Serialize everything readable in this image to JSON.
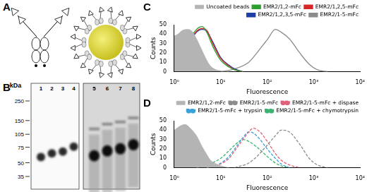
{
  "panels": {
    "labels": [
      "A",
      "B",
      "C",
      "D"
    ]
  },
  "blot": {
    "unit_label": "kDa",
    "markers": [
      250,
      150,
      105,
      75,
      50,
      35
    ],
    "lanes": [
      {
        "label": "1",
        "band_kda": 58
      },
      {
        "label": "2",
        "band_kda": 64
      },
      {
        "label": "3",
        "band_kda": 67
      },
      {
        "label": "4",
        "band_kda": 76
      },
      {
        "label": "5",
        "band_kda": 60
      },
      {
        "label": "6",
        "band_kda": 68
      },
      {
        "label": "7",
        "band_kda": 72
      },
      {
        "label": "8",
        "band_kda": 80
      }
    ]
  },
  "chart_data": [
    {
      "type": "line",
      "x_label": "Fluorescence",
      "y_label": "Counts",
      "log": "x",
      "grid": false,
      "legend": "top",
      "xlim": [
        1,
        10000
      ],
      "xticks": [
        {
          "value": 1,
          "label": "10⁰"
        },
        {
          "value": 10,
          "label": "10¹"
        },
        {
          "value": 100,
          "label": "10²"
        },
        {
          "value": 1000,
          "label": "10³"
        },
        {
          "value": 10000,
          "label": "10⁴"
        }
      ],
      "ylim": [
        0,
        50
      ],
      "yticks": [
        0,
        10,
        20,
        30,
        40,
        50
      ],
      "series": [
        {
          "name": "Uncoated beads",
          "color": "#b4b4b4",
          "type": "area",
          "x": [
            1,
            1.2,
            1.5,
            2,
            2.5,
            3,
            4,
            5,
            6,
            8,
            10,
            15
          ],
          "values": [
            38,
            40,
            44,
            45,
            42,
            35,
            22,
            12,
            6,
            2,
            1,
            0
          ]
        },
        {
          "name": "EMR2/1,2-mFc",
          "color": "#2ca02c",
          "x": [
            1,
            1.5,
            2,
            3,
            4,
            5,
            7,
            10,
            15,
            20,
            30
          ],
          "values": [
            5,
            18,
            32,
            45,
            48,
            42,
            25,
            12,
            5,
            2,
            0
          ]
        },
        {
          "name": "EMR2/1,2,5-mFc",
          "color": "#d62728",
          "x": [
            1,
            1.5,
            2,
            3,
            4,
            5,
            7,
            10,
            15,
            20,
            30
          ],
          "values": [
            4,
            16,
            30,
            43,
            46,
            44,
            28,
            14,
            6,
            2,
            0
          ]
        },
        {
          "name": "EMR2/1,2,3,5-mFc",
          "color": "#1f3fa8",
          "x": [
            1,
            1.5,
            2,
            3,
            4,
            5,
            7,
            10,
            15,
            20,
            30
          ],
          "values": [
            4,
            15,
            28,
            42,
            45,
            43,
            30,
            15,
            7,
            3,
            0
          ]
        },
        {
          "name": "EMR2/1-5-mFc",
          "color": "#8c8c8c",
          "x": [
            10,
            20,
            40,
            60,
            80,
            100,
            150,
            200,
            300,
            500,
            800,
            1200,
            2000
          ],
          "values": [
            0,
            3,
            10,
            20,
            28,
            34,
            45,
            42,
            35,
            20,
            8,
            2,
            0
          ]
        }
      ]
    },
    {
      "type": "line",
      "x_label": "Fluorescence",
      "y_label": "Counts",
      "log": "x",
      "grid": false,
      "legend": "top",
      "xlim": [
        1,
        10000
      ],
      "xticks": [
        {
          "value": 1,
          "label": "10⁰"
        },
        {
          "value": 10,
          "label": "10¹"
        },
        {
          "value": 100,
          "label": "10²"
        },
        {
          "value": 1000,
          "label": "10³"
        },
        {
          "value": 10000,
          "label": "10⁴"
        }
      ],
      "ylim": [
        0,
        50
      ],
      "yticks": [
        0,
        10,
        20,
        30,
        40,
        50
      ],
      "series": [
        {
          "name": "EMR2/1,2-mFc",
          "color": "#b4b4b4",
          "type": "area",
          "x": [
            1,
            1.3,
            1.7,
            2.2,
            3,
            4,
            5,
            6,
            8,
            10,
            12,
            15
          ],
          "values": [
            40,
            44,
            46,
            42,
            34,
            22,
            14,
            8,
            4,
            2,
            1,
            0
          ]
        },
        {
          "name": "EMR2/1-5-mFc",
          "color": "#8c8c8c",
          "line_style": "dashed",
          "x": [
            20,
            40,
            60,
            100,
            150,
            200,
            300,
            500,
            800,
            1200,
            2000
          ],
          "values": [
            0,
            5,
            12,
            24,
            34,
            40,
            38,
            25,
            10,
            3,
            0
          ]
        },
        {
          "name": "EMR2/1-5-mFc + dispase",
          "color": "#e0607a",
          "line_style": "dashed",
          "x": [
            5,
            10,
            15,
            20,
            30,
            40,
            50,
            70,
            100,
            150,
            200,
            300,
            500
          ],
          "values": [
            0,
            4,
            10,
            18,
            30,
            38,
            42,
            38,
            28,
            15,
            8,
            3,
            0
          ]
        },
        {
          "name": "EMR2/1-5-mFc + trypsin",
          "color": "#3aa0d8",
          "line_style": "dashed",
          "x": [
            5,
            10,
            15,
            20,
            30,
            40,
            50,
            70,
            100,
            150,
            200,
            300
          ],
          "values": [
            0,
            5,
            12,
            20,
            32,
            38,
            37,
            30,
            20,
            10,
            4,
            0
          ]
        },
        {
          "name": "EMR2/1-5-mFc + chymotrypsin",
          "color": "#3cb371",
          "line_style": "dashed",
          "x": [
            3,
            5,
            10,
            15,
            20,
            30,
            40,
            60,
            100,
            150,
            200,
            300
          ],
          "values": [
            0,
            3,
            10,
            18,
            24,
            30,
            28,
            22,
            12,
            5,
            2,
            0
          ]
        }
      ]
    }
  ]
}
